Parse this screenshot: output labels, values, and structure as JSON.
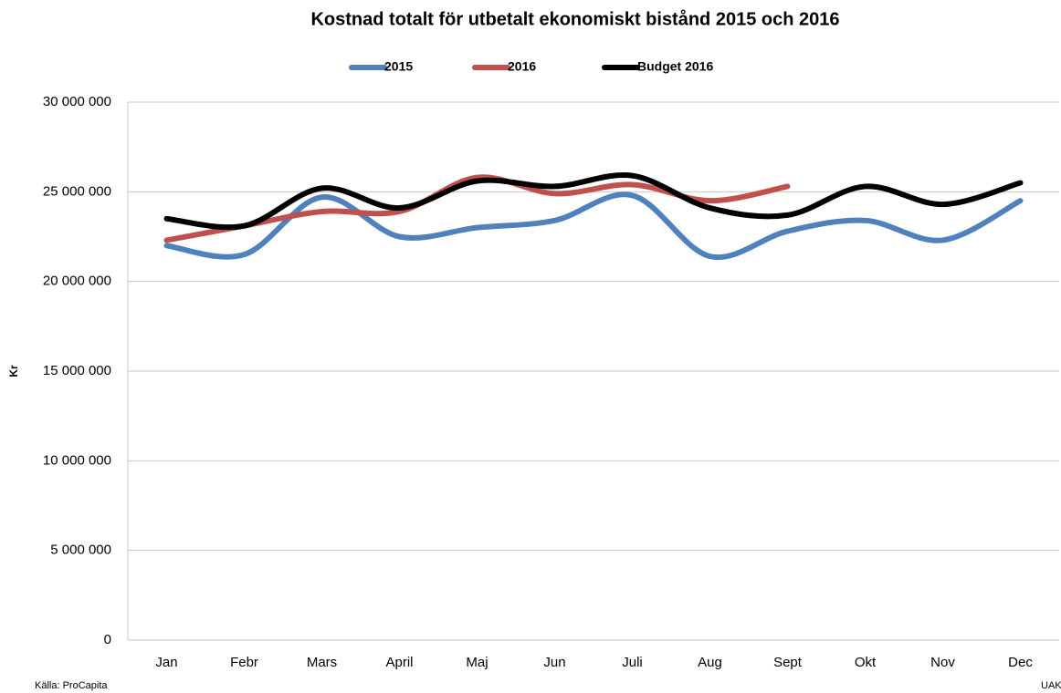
{
  "chart_data": {
    "type": "line",
    "title": "Kostnad totalt för utbetalt ekonomiskt bistånd 2015 och 2016",
    "y_label": "Kr",
    "source": "Källa: ProCapita",
    "footer_right": "UAK",
    "categories": [
      "Jan",
      "Febr",
      "Mars",
      "April",
      "Maj",
      "Jun",
      "Juli",
      "Aug",
      "Sept",
      "Okt",
      "Nov",
      "Dec"
    ],
    "series": [
      {
        "name": "2015",
        "color": "#4f81bd",
        "values": [
          22000000,
          21500000,
          24700000,
          22500000,
          23000000,
          23400000,
          24800000,
          21400000,
          22800000,
          23400000,
          22300000,
          24500000
        ]
      },
      {
        "name": "2016",
        "color": "#c0504d",
        "values": [
          22300000,
          23100000,
          23900000,
          23900000,
          25800000,
          24900000,
          25400000,
          24500000,
          25300000,
          null,
          null,
          null
        ]
      },
      {
        "name": "Budget 2016",
        "color": "#000000",
        "values": [
          23500000,
          23100000,
          25200000,
          24100000,
          25600000,
          25300000,
          25900000,
          24100000,
          23700000,
          25300000,
          24300000,
          25500000
        ]
      }
    ],
    "ylim": [
      0,
      30000000
    ],
    "yticks": [
      0,
      {
        "value": 5000000,
        "label": "5 000 000"
      },
      {
        "value": 10000000,
        "label": "10 000 000"
      },
      {
        "value": 15000000,
        "label": "15 000 000"
      },
      {
        "value": 20000000,
        "label": "20 000 000"
      },
      {
        "value": 25000000,
        "label": "25 000 000"
      },
      {
        "value": 30000000,
        "label": "30 000 000"
      }
    ],
    "grid": true,
    "legend": "top",
    "smooth": true
  }
}
